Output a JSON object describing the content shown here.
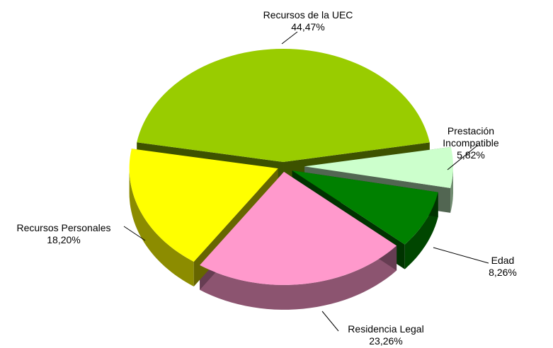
{
  "chart_data": {
    "type": "pie",
    "categories": [
      "Recursos de la UEC",
      "Prestación Incompatible",
      "Edad",
      "Residencia Legal",
      "Recursos Personales"
    ],
    "values": [
      44.47,
      5.82,
      8.26,
      23.26,
      18.2
    ],
    "value_labels": [
      "44,47%",
      "5,82%",
      "8,26%",
      "23,26%",
      "18,20%"
    ],
    "colors": [
      "#99cc00",
      "#ccffcc",
      "#008000",
      "#ff99cc",
      "#ffff00"
    ]
  }
}
